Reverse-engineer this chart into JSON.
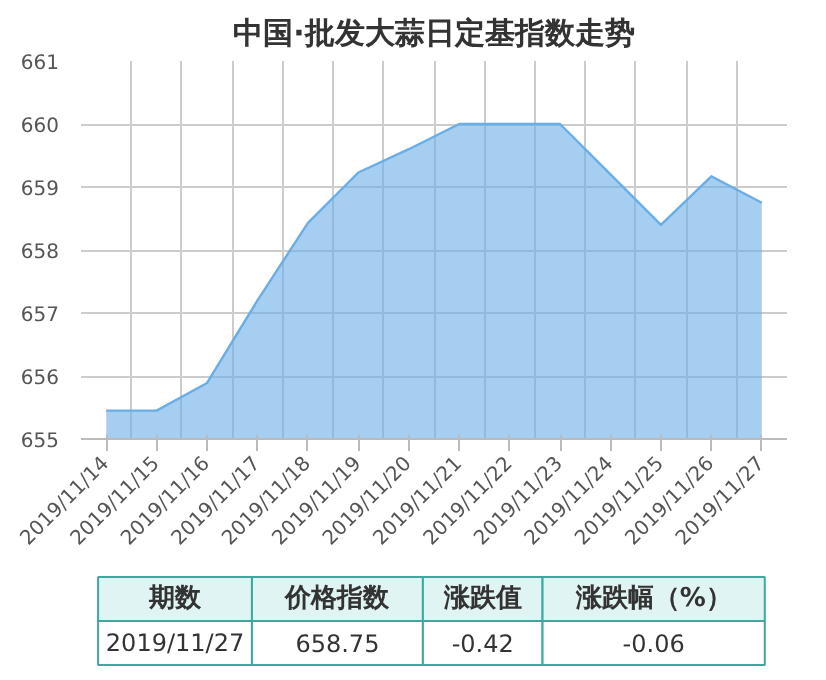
{
  "chart_data": {
    "type": "area",
    "title": "中国·批发大蒜日定基指数走势",
    "categories": [
      "2019/11/14",
      "2019/11/15",
      "2019/11/16",
      "2019/11/17",
      "2019/11/18",
      "2019/11/19",
      "2019/11/20",
      "2019/11/21",
      "2019/11/22",
      "2019/11/23",
      "2019/11/24",
      "2019/11/25",
      "2019/11/26",
      "2019/11/27"
    ],
    "series": [
      {
        "color": "#6aaee8",
        "values": [
          655.45,
          655.45,
          655.89,
          657.2,
          658.43,
          659.23,
          659.6,
          660.0,
          660.0,
          660.0,
          659.2,
          658.4,
          659.17,
          658.75
        ]
      }
    ],
    "ylim": [
      655,
      661
    ],
    "yticks": [
      655,
      656,
      657,
      658,
      659,
      660,
      661
    ],
    "grid": true,
    "annotations": [
      "期数",
      "价格指数",
      "涨跌值",
      "涨跌幅（%）",
      "2019/11/27",
      "658.75",
      "-0.42",
      "-0.06"
    ]
  }
}
